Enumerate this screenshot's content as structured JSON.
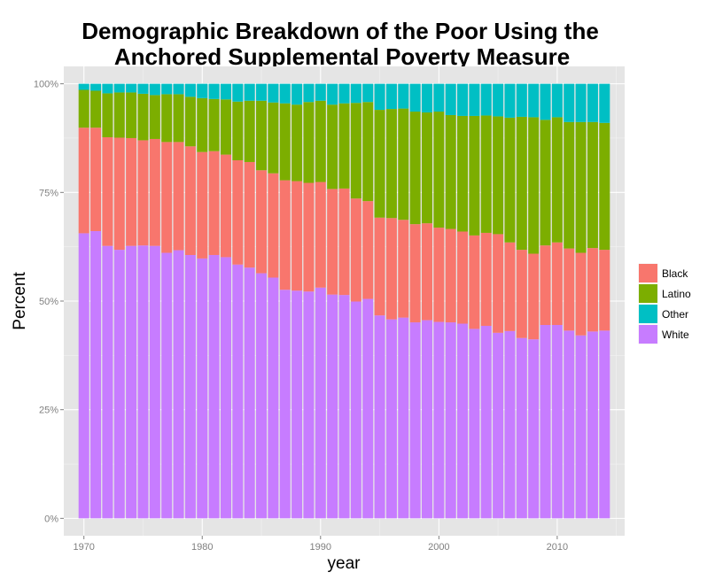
{
  "chart_data": {
    "type": "bar",
    "stacked": "percent",
    "title": "Demographic Breakdown of the Poor Using the Anchored Supplemental Poverty Measure",
    "title_lines": [
      "Demographic Breakdown of the Poor Using the",
      "Anchored Supplemental Poverty Measure"
    ],
    "xlabel": "year",
    "ylabel": "Percent",
    "xlim": [
      1968.3,
      2015.7
    ],
    "ylim": [
      -0.04,
      1.04
    ],
    "x_ticks": [
      1970,
      1980,
      1990,
      2000,
      2010
    ],
    "x_tick_labels": [
      "1970",
      "1980",
      "1990",
      "2000",
      "2010"
    ],
    "y_ticks": [
      0,
      0.25,
      0.5,
      0.75,
      1.0
    ],
    "y_tick_labels": [
      "0%",
      "25%",
      "50%",
      "75%",
      "100%"
    ],
    "grid": true,
    "legend_position": "right",
    "stack_order_bottom_to_top": [
      "White",
      "Black",
      "Latino",
      "Other"
    ],
    "legend_order": [
      "Black",
      "Latino",
      "Other",
      "White"
    ],
    "colors": {
      "Black": "#F8766D",
      "Latino": "#7CAE00",
      "Other": "#00BFC4",
      "White": "#C77CFF",
      "panel_background": "#E5E5E5",
      "grid_major": "#FFFFFF",
      "grid_minor": "#F2F2F2"
    },
    "x": [
      1970,
      1971,
      1972,
      1973,
      1974,
      1975,
      1976,
      1977,
      1978,
      1979,
      1980,
      1981,
      1982,
      1983,
      1984,
      1985,
      1986,
      1987,
      1988,
      1989,
      1990,
      1991,
      1992,
      1993,
      1994,
      1995,
      1996,
      1997,
      1998,
      1999,
      2000,
      2001,
      2002,
      2003,
      2004,
      2005,
      2006,
      2007,
      2008,
      2009,
      2010,
      2011,
      2012,
      2013,
      2014
    ],
    "series": [
      {
        "name": "White",
        "values": [
          0.656,
          0.661,
          0.627,
          0.618,
          0.627,
          0.628,
          0.627,
          0.611,
          0.617,
          0.606,
          0.598,
          0.606,
          0.601,
          0.584,
          0.577,
          0.564,
          0.554,
          0.526,
          0.524,
          0.522,
          0.531,
          0.515,
          0.514,
          0.499,
          0.505,
          0.467,
          0.458,
          0.462,
          0.451,
          0.456,
          0.452,
          0.451,
          0.448,
          0.436,
          0.443,
          0.427,
          0.431,
          0.415,
          0.412,
          0.445,
          0.445,
          0.432,
          0.421,
          0.43,
          0.432
        ]
      },
      {
        "name": "Black",
        "values": [
          0.243,
          0.238,
          0.25,
          0.258,
          0.248,
          0.242,
          0.246,
          0.255,
          0.249,
          0.25,
          0.245,
          0.239,
          0.236,
          0.24,
          0.243,
          0.237,
          0.24,
          0.252,
          0.252,
          0.25,
          0.243,
          0.243,
          0.245,
          0.237,
          0.225,
          0.225,
          0.233,
          0.225,
          0.226,
          0.223,
          0.217,
          0.215,
          0.212,
          0.215,
          0.214,
          0.227,
          0.204,
          0.203,
          0.197,
          0.183,
          0.19,
          0.189,
          0.19,
          0.192,
          0.186
        ]
      },
      {
        "name": "Latino",
        "values": [
          0.087,
          0.085,
          0.101,
          0.104,
          0.105,
          0.107,
          0.101,
          0.11,
          0.11,
          0.114,
          0.124,
          0.12,
          0.127,
          0.135,
          0.141,
          0.16,
          0.163,
          0.177,
          0.176,
          0.186,
          0.187,
          0.194,
          0.196,
          0.22,
          0.228,
          0.248,
          0.251,
          0.256,
          0.259,
          0.255,
          0.267,
          0.262,
          0.266,
          0.275,
          0.27,
          0.271,
          0.287,
          0.306,
          0.314,
          0.289,
          0.288,
          0.291,
          0.301,
          0.29,
          0.292
        ]
      },
      {
        "name": "Other",
        "values": [
          0.014,
          0.016,
          0.022,
          0.02,
          0.02,
          0.023,
          0.026,
          0.024,
          0.024,
          0.03,
          0.033,
          0.035,
          0.036,
          0.041,
          0.039,
          0.039,
          0.043,
          0.045,
          0.048,
          0.042,
          0.039,
          0.048,
          0.045,
          0.044,
          0.042,
          0.06,
          0.058,
          0.057,
          0.064,
          0.066,
          0.064,
          0.072,
          0.074,
          0.074,
          0.073,
          0.075,
          0.078,
          0.076,
          0.077,
          0.083,
          0.077,
          0.088,
          0.088,
          0.088,
          0.09
        ]
      }
    ]
  }
}
